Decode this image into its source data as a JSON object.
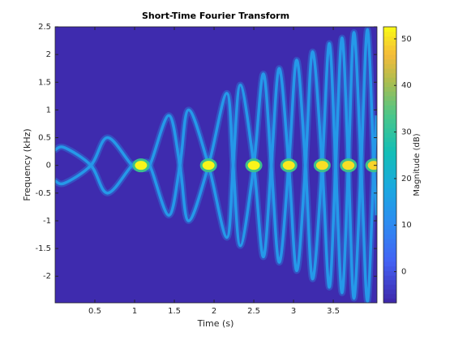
{
  "chart_data": {
    "type": "spectrogram",
    "title": "Short-Time Fourier Transform",
    "xlabel": "Time (s)",
    "ylabel": "Frequency (kHz)",
    "colorbar_label": "Magnitude (dB)",
    "xlim": [
      0,
      4.05
    ],
    "ylim": [
      -2.48,
      2.5
    ],
    "clim": [
      -6.7,
      52.6
    ],
    "xticks": [
      0.5,
      1,
      1.5,
      2,
      2.5,
      3,
      3.5
    ],
    "yticks": [
      -2,
      -1.5,
      -1,
      -0.5,
      0,
      0.5,
      1,
      1.5,
      2,
      2.5
    ],
    "cticks": [
      0,
      10,
      20,
      30,
      40,
      50
    ],
    "background_db": -6,
    "series": [
      {
        "magnitude": 14,
        "x": [
          0,
          0.12,
          0.45,
          0.66,
          0.97,
          1.08,
          1.19,
          1.43,
          1.57,
          1.68,
          1.93,
          2.16,
          2.24,
          2.33,
          2.5,
          2.62,
          2.72,
          2.82,
          2.94,
          3.04,
          3.15,
          3.24,
          3.36,
          3.45,
          3.53,
          3.61,
          3.69,
          3.76,
          3.85,
          3.93,
          4.01,
          4.05
        ],
        "values": [
          0.28,
          0.32,
          0,
          -0.5,
          0,
          0,
          0,
          0.9,
          0,
          -1.0,
          0,
          1.3,
          0,
          -1.45,
          0,
          1.65,
          0,
          -1.75,
          0,
          1.9,
          0,
          -2.05,
          0,
          2.2,
          0,
          -2.3,
          0,
          2.4,
          0,
          -2.45,
          0,
          0.9
        ]
      },
      {
        "magnitude": 14,
        "x": [
          0,
          0.12,
          0.45,
          0.66,
          0.97,
          1.08,
          1.19,
          1.43,
          1.57,
          1.68,
          1.93,
          2.16,
          2.24,
          2.33,
          2.5,
          2.62,
          2.72,
          2.82,
          2.94,
          3.04,
          3.15,
          3.24,
          3.36,
          3.45,
          3.53,
          3.61,
          3.69,
          3.76,
          3.85,
          3.93,
          4.01,
          4.05
        ],
        "values": [
          -0.28,
          -0.32,
          0,
          0.5,
          0,
          0,
          0,
          -0.9,
          0,
          1.0,
          0,
          -1.3,
          0,
          1.45,
          0,
          -1.65,
          0,
          1.75,
          0,
          -1.9,
          0,
          2.05,
          0,
          -2.2,
          0,
          2.3,
          0,
          -2.4,
          0,
          2.45,
          0,
          -0.9
        ]
      }
    ],
    "hotspots": {
      "x": [
        1.08,
        1.93,
        2.5,
        2.94,
        3.36,
        3.69,
        4.01
      ],
      "frequency": [
        0,
        0,
        0,
        0,
        0,
        0,
        0
      ],
      "values": [
        52,
        52,
        52,
        51,
        50,
        50,
        49
      ]
    }
  }
}
